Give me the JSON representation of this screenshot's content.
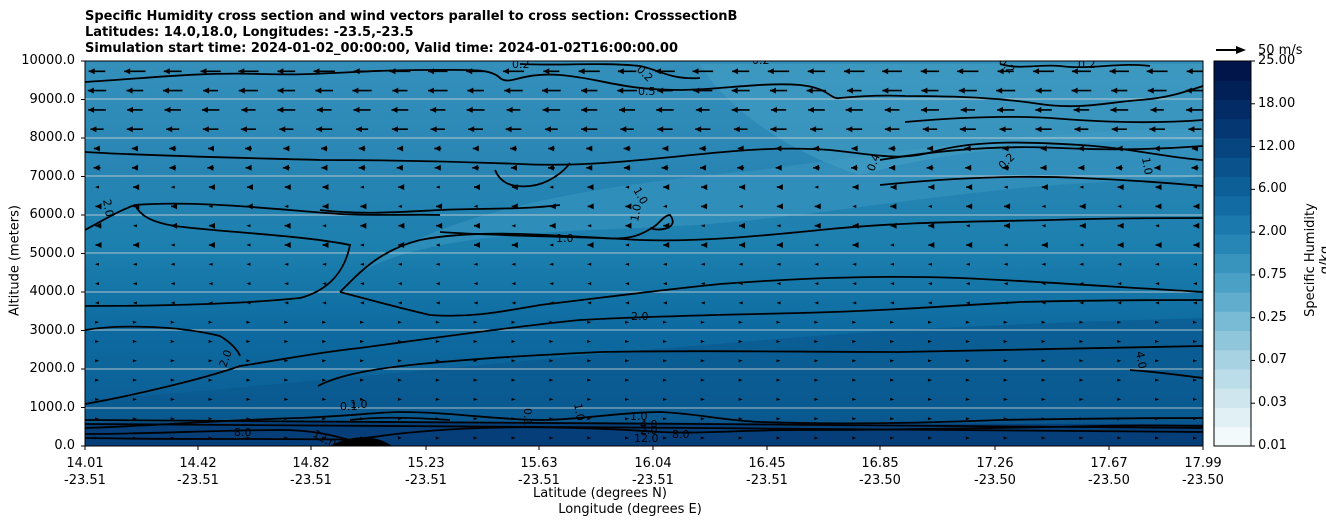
{
  "chart_data": {
    "type": "contour",
    "title_lines": [
      "Specific Humidity cross section and wind vectors parallel to cross section: CrosssectionB",
      "Latitudes: 14.0,18.0, Longitudes: -23.5,-23.5",
      "Simulation start time: 2024-01-02_00:00:00, Valid time: 2024-01-02T16:00:00.00"
    ],
    "ylabel": "Altitude (meters)",
    "xlabel_lat": "Latitude (degrees N)",
    "xlabel_lon": "Longitude (degrees E)",
    "ylim": [
      0,
      10000
    ],
    "y_ticks": [
      "0.0",
      "1000.0",
      "2000.0",
      "3000.0",
      "4000.0",
      "5000.0",
      "6000.0",
      "7000.0",
      "8000.0",
      "9000.0",
      "10000.0"
    ],
    "x_ticks": [
      {
        "lat": "14.01",
        "lon": "-23.51"
      },
      {
        "lat": "14.42",
        "lon": "-23.51"
      },
      {
        "lat": "14.82",
        "lon": "-23.51"
      },
      {
        "lat": "15.23",
        "lon": "-23.51"
      },
      {
        "lat": "15.63",
        "lon": "-23.51"
      },
      {
        "lat": "16.04",
        "lon": "-23.51"
      },
      {
        "lat": "16.45",
        "lon": "-23.51"
      },
      {
        "lat": "16.85",
        "lon": "-23.50"
      },
      {
        "lat": "17.26",
        "lon": "-23.50"
      },
      {
        "lat": "17.67",
        "lon": "-23.50"
      },
      {
        "lat": "17.99",
        "lon": "-23.50"
      }
    ],
    "colorbar_label": "Specific Humidity g/kg",
    "colorbar_ticks": [
      "0.01",
      "0.03",
      "0.07",
      "0.25",
      "0.75",
      "2.00",
      "6.00",
      "12.00",
      "18.00",
      "25.00"
    ],
    "colorbar_colors": [
      "#f3fafc",
      "#e1f0f4",
      "#cfe6ee",
      "#bbdde9",
      "#a6d2e2",
      "#90c6db",
      "#79bad4",
      "#61adcd",
      "#4ba0c5",
      "#3893bd",
      "#2886b6",
      "#1b79ad",
      "#126ca3",
      "#0d5f98",
      "#09528c",
      "#074580",
      "#053873",
      "#032c66",
      "#022058",
      "#01154a"
    ],
    "contour_levels": [
      "0.2",
      "0.5",
      "1.0",
      "2.0",
      "4.0",
      "8.0",
      "12.0"
    ],
    "quiver_key": "50 m/s",
    "wind_description": "easterly flow aloft (above ~8000 m), weak near surface",
    "grid": true
  }
}
